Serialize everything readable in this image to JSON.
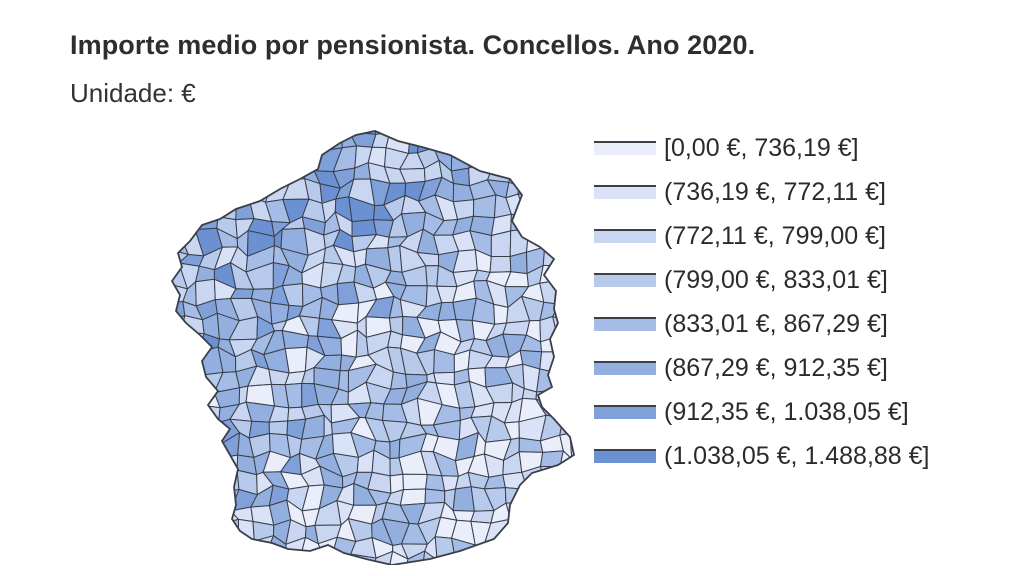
{
  "title": "Importe medio por pensionista. Concellos. Ano 2020.",
  "subtitle": "Unidade: €",
  "legend": {
    "items": [
      {
        "label": "[0,00 €, 736,19 €]",
        "color": "#eaedfa"
      },
      {
        "label": "(736,19 €, 772,11 €]",
        "color": "#d9e2f6"
      },
      {
        "label": "(772,11 €, 799,00 €]",
        "color": "#c9d6f1"
      },
      {
        "label": "(799,00 €, 833,01 €]",
        "color": "#b7caec"
      },
      {
        "label": "(833,01 €, 867,29 €]",
        "color": "#a5bde6"
      },
      {
        "label": "(867,29 €, 912,35 €]",
        "color": "#93afe0"
      },
      {
        "label": "(912,35 €, 1.038,05 €]",
        "color": "#7fa0d9"
      },
      {
        "label": "(1.038,05 €, 1.488,88 €]",
        "color": "#6b91d2"
      }
    ]
  },
  "map": {
    "region": "Galicia",
    "border_color": "#3a3f4a"
  }
}
